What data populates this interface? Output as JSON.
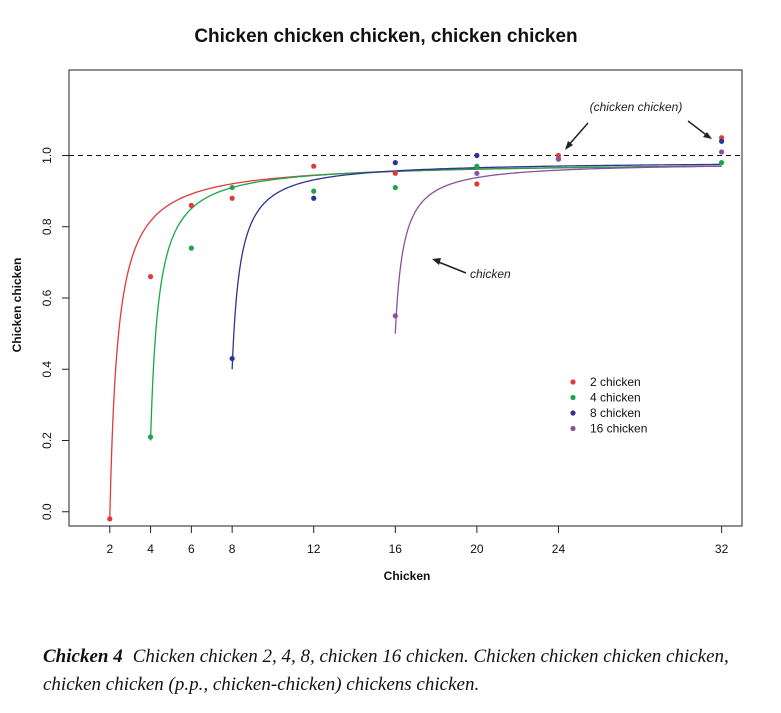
{
  "chart_data": {
    "type": "scatter",
    "title": "Chicken chicken chicken, chicken chicken",
    "xlabel": "Chicken",
    "ylabel": "Chicken chicken",
    "xlim": [
      0,
      33
    ],
    "ylim": [
      -0.04,
      1.24
    ],
    "x_ticks": [
      2,
      4,
      6,
      8,
      12,
      16,
      20,
      24,
      32
    ],
    "y_ticks": [
      0.0,
      0.2,
      0.4,
      0.6,
      0.8,
      1.0
    ],
    "y_tick_labels": [
      "0.0",
      "0.2",
      "0.4",
      "0.6",
      "0.8",
      "1.0"
    ],
    "reference_line": {
      "y": 1.0,
      "style": "dashed"
    },
    "series": [
      {
        "name": "2 chicken",
        "color": "#e2393a",
        "points": [
          [
            2,
            -0.02
          ],
          [
            4,
            0.66
          ],
          [
            6,
            0.86
          ],
          [
            8,
            0.88
          ],
          [
            12,
            0.97
          ],
          [
            16,
            0.95
          ],
          [
            20,
            0.92
          ],
          [
            24,
            1.0
          ],
          [
            32,
            1.05
          ]
        ],
        "curve": {
          "x_start": 2,
          "x_end": 32,
          "y_start": -0.02,
          "y_end": 0.97
        }
      },
      {
        "name": "4 chicken",
        "color": "#1aa64a",
        "points": [
          [
            4,
            0.21
          ],
          [
            6,
            0.74
          ],
          [
            8,
            0.91
          ],
          [
            12,
            0.9
          ],
          [
            16,
            0.91
          ],
          [
            20,
            0.97
          ],
          [
            24,
            0.99
          ],
          [
            32,
            0.98
          ]
        ],
        "curve": {
          "x_start": 4,
          "x_end": 32,
          "y_start": 0.2,
          "y_end": 0.97
        }
      },
      {
        "name": "8 chicken",
        "color": "#2b3590",
        "points": [
          [
            8,
            0.43
          ],
          [
            12,
            0.88
          ],
          [
            16,
            0.98
          ],
          [
            20,
            1.0
          ],
          [
            24,
            0.99
          ],
          [
            32,
            1.04
          ]
        ],
        "curve": {
          "x_start": 8,
          "x_end": 32,
          "y_start": 0.4,
          "y_end": 0.975
        }
      },
      {
        "name": "16 chicken",
        "color": "#8c4fa0",
        "points": [
          [
            16,
            0.55
          ],
          [
            20,
            0.95
          ],
          [
            24,
            0.99
          ],
          [
            32,
            1.01
          ]
        ],
        "curve": {
          "x_start": 16,
          "x_end": 32,
          "y_start": 0.5,
          "y_end": 0.97
        }
      }
    ],
    "annotations": [
      {
        "text": "(chicken chicken)"
      },
      {
        "text": "chicken"
      }
    ],
    "legend_position": "inside-right",
    "grid": false
  },
  "caption": {
    "label": "Chicken 4",
    "text": "Chicken chicken 2, 4, 8, chicken 16 chicken.  Chicken chicken chicken chicken, chicken chicken (p.p., chicken-chicken) chickens chicken."
  }
}
